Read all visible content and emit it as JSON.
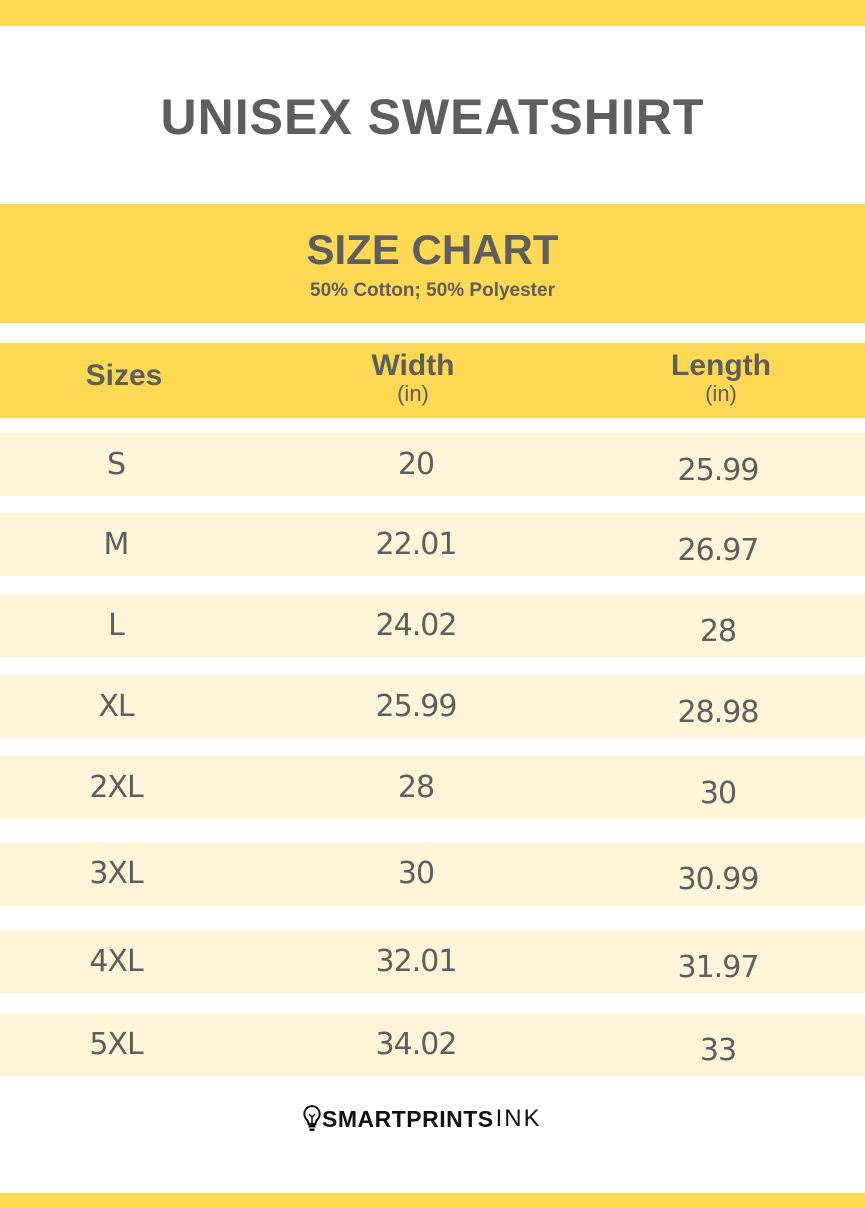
{
  "title": "UNISEX SWEATSHIRT",
  "chart": {
    "heading": "SIZE CHART",
    "material": "50% Cotton; 50% Polyester"
  },
  "columns": [
    {
      "label": "Sizes",
      "unit": ""
    },
    {
      "label": "Width",
      "unit": "(in)"
    },
    {
      "label": "Length",
      "unit": "(in)"
    }
  ],
  "rows": [
    {
      "size": "S",
      "width": "20",
      "length": "25.99"
    },
    {
      "size": "M",
      "width": "22.01",
      "length": "26.97"
    },
    {
      "size": "L",
      "width": "24.02",
      "length": "28"
    },
    {
      "size": "XL",
      "width": "25.99",
      "length": "28.98"
    },
    {
      "size": "2XL",
      "width": "28",
      "length": "30"
    },
    {
      "size": "3XL",
      "width": "30",
      "length": "30.99"
    },
    {
      "size": "4XL",
      "width": "32.01",
      "length": "31.97"
    },
    {
      "size": "5XL",
      "width": "34.02",
      "length": "33"
    }
  ],
  "brand": {
    "bold": "SMARTPRINTS",
    "light": "INK",
    "icon": "lightbulb-icon"
  },
  "colors": {
    "accent": "#ffd954",
    "row": "#fff4d8",
    "text": "#5e5e5e"
  }
}
